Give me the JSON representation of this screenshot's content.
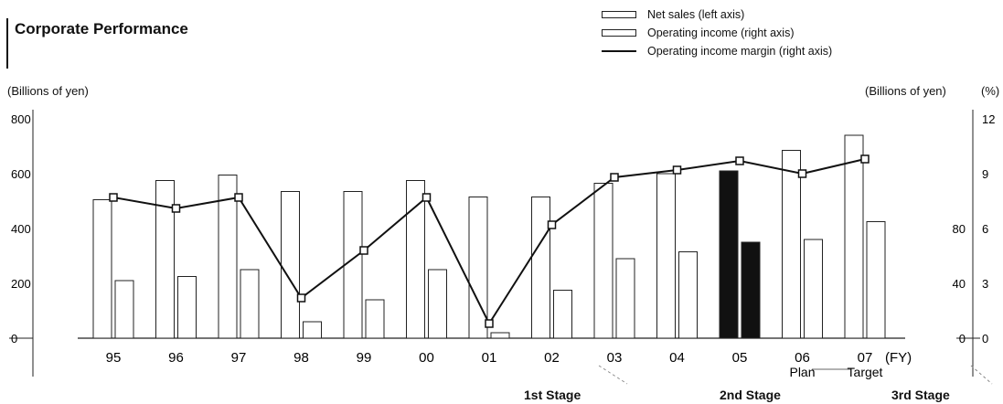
{
  "chart_data": {
    "type": "bar",
    "title": "Corporate Performance",
    "categories": [
      "95",
      "96",
      "97",
      "98",
      "99",
      "00",
      "01",
      "02",
      "03",
      "04",
      "05",
      "06",
      "07"
    ],
    "category_sublabels": [
      "",
      "",
      "",
      "",
      "",
      "",
      "",
      "",
      "",
      "",
      "",
      "Plan",
      "Target"
    ],
    "x_unit": "(FY)",
    "series": [
      {
        "name": "Net sales (left axis)",
        "axis": "left",
        "values": [
          505,
          575,
          595,
          535,
          535,
          575,
          515,
          515,
          565,
          600,
          610,
          685,
          740
        ]
      },
      {
        "name": "Operating income (right axis)",
        "axis": "right_billions",
        "values": [
          42,
          45,
          50,
          12,
          28,
          50,
          4,
          35,
          58,
          63,
          70,
          72,
          85
        ]
      },
      {
        "name": "Operating income margin (right axis)",
        "axis": "right_percent",
        "type": "line",
        "values": [
          7.7,
          7.1,
          7.7,
          2.2,
          4.8,
          7.7,
          0.8,
          6.2,
          8.8,
          9.2,
          9.7,
          9.0,
          9.8
        ]
      }
    ],
    "highlight_category": "05",
    "left_axis": {
      "label": "(Billions of yen)",
      "ticks": [
        0,
        200,
        400,
        600,
        800
      ],
      "ylim": [
        0,
        800
      ]
    },
    "right_axis_billions": {
      "label": "(Billions of yen)",
      "ticks": [
        0,
        40,
        80
      ],
      "ylim": [
        0,
        200
      ]
    },
    "right_axis_percent": {
      "label": "(%)",
      "ticks": [
        0,
        3,
        6,
        9,
        12
      ],
      "ylim": [
        0,
        12
      ]
    },
    "stages": [
      "1st Stage",
      "2nd Stage",
      "3rd Stage"
    ],
    "legend_placement": "top-right",
    "grid": false
  }
}
